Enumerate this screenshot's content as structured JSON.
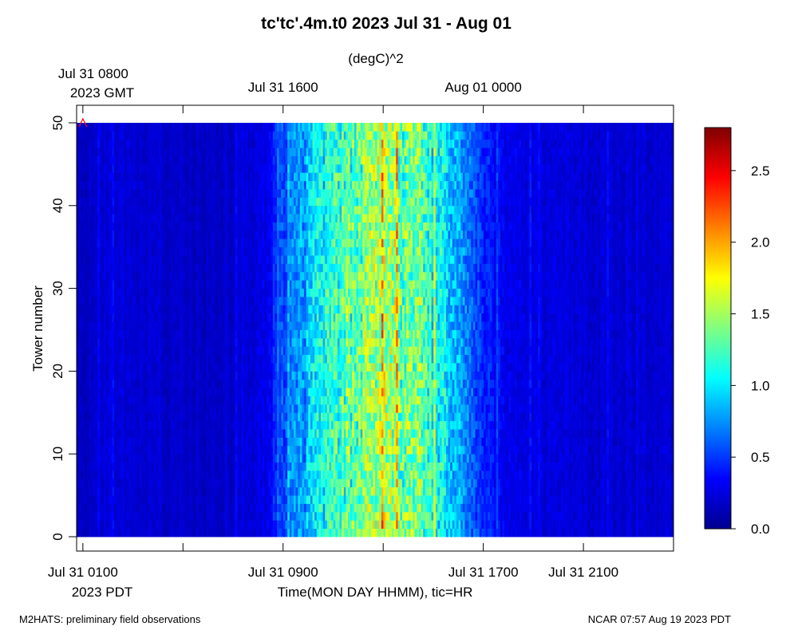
{
  "chart_data": {
    "type": "heatmap",
    "title": "tc'tc'.4m.t0 2023 Jul 31 - Aug 01",
    "units_label": "(degC)^2",
    "ylabel": "Tower number",
    "xlabel": "Time(MON DAY HHMM), tic=HR",
    "ylim": [
      0,
      50
    ],
    "y_ticks": [
      "0",
      "10",
      "20",
      "30",
      "40",
      "50"
    ],
    "x_range_hours_pdt": [
      0.75,
      24.6
    ],
    "bottom_ticks": [
      {
        "hour": 1,
        "label": "Jul 31 0100"
      },
      {
        "hour": 9,
        "label": "Jul 31 0900"
      },
      {
        "hour": 17,
        "label": "Jul 31 1700"
      },
      {
        "hour": 21,
        "label": "Jul 31 2100"
      }
    ],
    "bottom_tz_label": "2023 PDT",
    "top_ticks": [
      {
        "hour": 1,
        "label": "Jul 31 0800"
      },
      {
        "hour": 9,
        "label": "Jul 31 1600"
      },
      {
        "hour": 17,
        "label": "Aug 01 0000"
      }
    ],
    "top_tz_label": "2023 GMT",
    "minor_tick_hours": [
      1,
      5,
      9,
      13,
      17,
      21
    ],
    "colorbar": {
      "min": 0.0,
      "max": 2.8,
      "ticks": [
        "0.0",
        "0.5",
        "1.0",
        "1.5",
        "2.0",
        "2.5"
      ],
      "colors": [
        "#00008f",
        "#0000ff",
        "#0080ff",
        "#00ffff",
        "#80ff80",
        "#ffff00",
        "#ff8000",
        "#ff0000",
        "#800000"
      ]
    },
    "marker": {
      "hour": 1,
      "tower": 50,
      "symbol": "^",
      "color": "#ff0000"
    },
    "daily_profile": [
      {
        "hour": 0.75,
        "value": 0.18
      },
      {
        "hour": 2.0,
        "value": 0.22
      },
      {
        "hour": 4.0,
        "value": 0.2
      },
      {
        "hour": 6.0,
        "value": 0.16
      },
      {
        "hour": 7.5,
        "value": 0.2
      },
      {
        "hour": 8.5,
        "value": 0.3
      },
      {
        "hour": 9.0,
        "value": 0.55
      },
      {
        "hour": 10.0,
        "value": 0.85
      },
      {
        "hour": 11.0,
        "value": 1.2
      },
      {
        "hour": 12.5,
        "value": 1.4
      },
      {
        "hour": 13.5,
        "value": 1.5
      },
      {
        "hour": 14.5,
        "value": 1.3
      },
      {
        "hour": 15.5,
        "value": 0.95
      },
      {
        "hour": 16.5,
        "value": 0.65
      },
      {
        "hour": 17.0,
        "value": 0.45
      },
      {
        "hour": 18.0,
        "value": 0.28
      },
      {
        "hour": 21.0,
        "value": 0.22
      },
      {
        "hour": 24.6,
        "value": 0.2
      }
    ]
  },
  "footer": {
    "left": "M2HATS: preliminary field observations",
    "right": "NCAR 07:57 Aug 19 2023 PDT"
  }
}
